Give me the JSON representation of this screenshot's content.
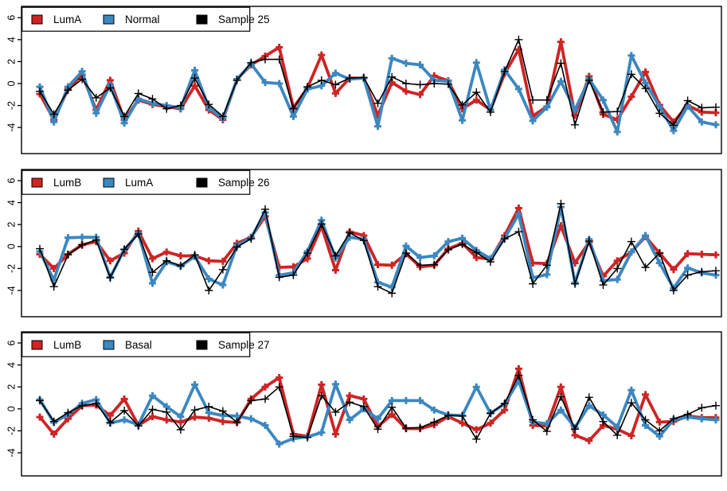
{
  "figure": {
    "type": "multi-panel-line-chart",
    "panel_count": 3,
    "background": "#ffffff",
    "axis_color": "#000000"
  },
  "chart_data": [
    {
      "type": "line",
      "panel": 1,
      "title": "",
      "xlabel": "",
      "ylabel": "",
      "ylim": [
        -6.4,
        7.0
      ],
      "yticks": [
        6,
        4,
        2,
        0,
        -2,
        -4
      ],
      "x_ticks_visible": false,
      "x_count": 49,
      "grid": false,
      "legend": {
        "position": "top-left",
        "entries": [
          "LumA",
          "Normal",
          "Sample 25"
        ]
      },
      "series": [
        {
          "name": "LumA",
          "color": "#CE2424",
          "marker": "plus",
          "style": "thick",
          "values": [
            -0.95,
            -3.3,
            -0.5,
            0.8,
            -2.4,
            0.3,
            -3.3,
            -1.5,
            -1.9,
            -2.1,
            -2.3,
            -0.2,
            -2.4,
            -3.3,
            0.4,
            1.7,
            2.5,
            3.3,
            -2.2,
            -0.4,
            2.6,
            -0.9,
            0.5,
            0.5,
            -2.9,
            0.1,
            -0.7,
            -1.0,
            0.7,
            0.25,
            -2.3,
            -1.5,
            -2.4,
            0.9,
            3.1,
            -2.95,
            -2.1,
            3.8,
            -2.9,
            0.65,
            -2.8,
            -3.3,
            -1.2,
            1.05,
            -1.95,
            -3.5,
            -2.0,
            -2.6,
            -2.65
          ]
        },
        {
          "name": "Normal",
          "color": "#3B87C0",
          "marker": "plus",
          "style": "thick",
          "values": [
            -0.3,
            -3.5,
            -0.3,
            1.1,
            -2.7,
            -0.1,
            -3.6,
            -1.4,
            -1.8,
            -2.0,
            -2.2,
            1.2,
            -2.2,
            -3.2,
            0.4,
            1.8,
            0.1,
            0.0,
            -3.0,
            -0.5,
            -0.2,
            0.95,
            0.4,
            0.5,
            -3.9,
            2.3,
            1.85,
            1.7,
            0.3,
            0.2,
            -3.35,
            1.9,
            -2.4,
            1.25,
            -0.5,
            -3.4,
            -2.15,
            0.2,
            -2.4,
            0.4,
            -1.5,
            -4.4,
            2.55,
            0.05,
            -2.1,
            -4.3,
            -2.05,
            -3.5,
            -3.75
          ]
        },
        {
          "name": "Sample 25",
          "color": "#000000",
          "marker": "plus",
          "style": "thin",
          "values": [
            -0.7,
            -2.8,
            -0.6,
            0.4,
            -1.3,
            -0.4,
            -3.0,
            -0.9,
            -1.4,
            -2.3,
            -2.0,
            0.5,
            -1.9,
            -3.0,
            0.3,
            1.9,
            2.2,
            2.2,
            -2.3,
            -0.3,
            0.3,
            -0.1,
            0.5,
            0.55,
            -1.8,
            0.6,
            0.0,
            -0.1,
            0.0,
            -0.05,
            -1.95,
            -0.8,
            -2.6,
            1.1,
            4.0,
            -1.5,
            -1.5,
            1.85,
            -3.75,
            0.3,
            -2.6,
            -2.55,
            0.85,
            -0.45,
            -2.7,
            -3.8,
            -1.55,
            -2.2,
            -2.15
          ]
        }
      ]
    },
    {
      "type": "line",
      "panel": 2,
      "title": "",
      "xlabel": "",
      "ylabel": "",
      "ylim": [
        -6.4,
        7.0
      ],
      "yticks": [
        6,
        4,
        2,
        0,
        -2,
        -4
      ],
      "x_ticks_visible": false,
      "x_count": 49,
      "grid": false,
      "legend": {
        "position": "top-left",
        "entries": [
          "LumB",
          "LumA",
          "Sample 26"
        ]
      },
      "series": [
        {
          "name": "LumB",
          "color": "#CE2424",
          "marker": "plus",
          "style": "thick",
          "values": [
            -0.7,
            -2.0,
            -0.7,
            0.15,
            0.45,
            -1.3,
            -0.6,
            1.4,
            -1.1,
            -0.5,
            -0.85,
            -0.85,
            -1.3,
            -1.35,
            0.3,
            0.85,
            2.75,
            -1.9,
            -1.85,
            -1.1,
            1.85,
            -2.15,
            1.35,
            1.0,
            -1.65,
            -1.7,
            -0.65,
            -1.85,
            -1.7,
            -0.2,
            0.3,
            -1.0,
            -1.15,
            1.0,
            3.5,
            -1.5,
            -1.55,
            1.9,
            -1.5,
            0.4,
            -2.7,
            -1.3,
            -0.5,
            0.9,
            -0.6,
            -2.1,
            -0.65,
            -0.7,
            -0.75
          ]
        },
        {
          "name": "LumA",
          "color": "#3B87C0",
          "marker": "plus",
          "style": "thick",
          "values": [
            -0.45,
            -3.05,
            0.8,
            0.85,
            0.85,
            -2.8,
            -0.3,
            1.2,
            -3.35,
            -1.4,
            -1.8,
            -0.9,
            -2.95,
            -3.5,
            0.1,
            0.8,
            3.1,
            -2.6,
            -2.4,
            -0.45,
            2.4,
            -1.05,
            0.85,
            0.65,
            -3.25,
            -3.7,
            0.05,
            -1.0,
            -0.85,
            0.45,
            0.75,
            -0.35,
            -1.1,
            0.75,
            2.95,
            -2.85,
            -2.55,
            3.6,
            -3.3,
            0.65,
            -3.1,
            -3.0,
            -0.5,
            1.0,
            -1.5,
            -3.8,
            -1.95,
            -2.4,
            -2.6
          ]
        },
        {
          "name": "Sample 26",
          "color": "#000000",
          "marker": "plus",
          "style": "thin",
          "values": [
            -0.2,
            -3.65,
            -0.75,
            0.15,
            0.6,
            -2.85,
            -0.25,
            1.15,
            -2.35,
            -1.3,
            -1.75,
            -0.75,
            -4.0,
            -2.1,
            -0.05,
            0.7,
            3.4,
            -2.8,
            -2.6,
            -0.6,
            2.05,
            -0.85,
            1.25,
            0.55,
            -3.65,
            -4.25,
            -0.6,
            -1.7,
            -1.65,
            -0.3,
            0.2,
            -0.55,
            -1.4,
            0.7,
            1.35,
            -3.4,
            -1.7,
            3.9,
            -3.4,
            0.5,
            -3.5,
            -2.0,
            0.45,
            -1.9,
            -0.6,
            -4.0,
            -2.6,
            -2.3,
            -2.2
          ]
        }
      ]
    },
    {
      "type": "line",
      "panel": 3,
      "title": "",
      "xlabel": "",
      "ylabel": "",
      "ylim": [
        -6.4,
        7.0
      ],
      "yticks": [
        6,
        4,
        2,
        0,
        -2,
        -4
      ],
      "x_ticks_visible": false,
      "x_count": 49,
      "grid": false,
      "legend": {
        "position": "top-left",
        "entries": [
          "LumB",
          "Basal",
          "Sample 27"
        ]
      },
      "series": [
        {
          "name": "LumB",
          "color": "#CE2424",
          "marker": "plus",
          "style": "thick",
          "values": [
            -0.75,
            -2.3,
            -0.9,
            0.3,
            0.35,
            -0.6,
            0.9,
            -1.5,
            -0.7,
            -1.0,
            -1.2,
            -0.75,
            -0.85,
            -1.15,
            -1.25,
            0.9,
            2.0,
            2.85,
            -2.3,
            -2.5,
            2.2,
            -2.3,
            1.2,
            0.9,
            -1.6,
            -0.5,
            -1.8,
            -1.8,
            -1.45,
            -0.7,
            -1.3,
            -1.9,
            -1.3,
            -0.1,
            3.65,
            -1.5,
            -1.55,
            2.0,
            -2.4,
            -2.9,
            -1.5,
            -1.85,
            -2.45,
            1.3,
            -1.2,
            -1.15,
            -0.65,
            -0.8,
            -0.8
          ]
        },
        {
          "name": "Basal",
          "color": "#3B87C0",
          "marker": "plus",
          "style": "thick",
          "values": [
            0.85,
            -1.25,
            -0.5,
            0.5,
            0.85,
            -1.3,
            -1.0,
            -1.45,
            1.2,
            0.2,
            -0.7,
            2.2,
            -0.35,
            -0.6,
            -0.65,
            -0.9,
            -1.5,
            -3.2,
            -2.7,
            -2.55,
            -2.15,
            2.25,
            -1.0,
            0.0,
            -0.9,
            0.75,
            0.75,
            0.75,
            -0.1,
            -0.55,
            -0.6,
            2.0,
            -0.4,
            0.45,
            2.55,
            -1.2,
            -1.35,
            -0.1,
            -1.7,
            0.3,
            -0.55,
            -1.65,
            1.7,
            -1.5,
            -2.5,
            -1.0,
            -0.75,
            -0.9,
            -1.0
          ]
        },
        {
          "name": "Sample 27",
          "color": "#000000",
          "marker": "plus",
          "style": "thin",
          "values": [
            0.75,
            -1.15,
            -0.35,
            0.3,
            0.5,
            -1.25,
            -0.15,
            -1.55,
            -0.05,
            -0.3,
            -1.9,
            -0.1,
            0.2,
            -0.2,
            -1.2,
            0.75,
            0.9,
            2.0,
            -2.5,
            -2.6,
            1.2,
            -0.3,
            0.6,
            0.2,
            -1.85,
            0.15,
            -1.75,
            -1.7,
            -1.2,
            -0.6,
            -0.65,
            -2.75,
            -0.4,
            0.5,
            3.05,
            -1.0,
            -2.05,
            1.1,
            -1.85,
            1.05,
            -1.15,
            -2.4,
            0.55,
            -1.0,
            -2.0,
            -0.9,
            -0.5,
            0.1,
            0.3
          ]
        }
      ]
    }
  ]
}
